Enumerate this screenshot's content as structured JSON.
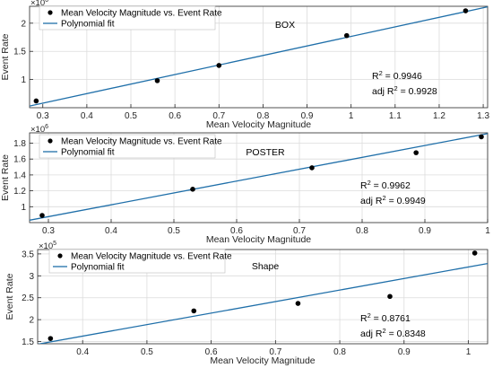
{
  "chart_data": [
    {
      "type": "scatter",
      "title": "BOX",
      "xlabel": "Mean Velocity Magnitude",
      "ylabel": "Event Rate",
      "y_scale_label": "×10",
      "y_scale_exp": "6",
      "xlim": [
        0.27,
        1.31
      ],
      "ylim": [
        0.5,
        2.3
      ],
      "xticks": [
        0.3,
        0.4,
        0.5,
        0.6,
        0.7,
        0.8,
        0.9,
        1.0,
        1.1,
        1.2,
        1.3
      ],
      "xtick_labels": [
        "0.3",
        "0.4",
        "0.5",
        "0.6",
        "0.7",
        "0.8",
        "0.9",
        "1",
        "1.1",
        "1.2",
        "1.3"
      ],
      "yticks": [
        1,
        1.5,
        2
      ],
      "ytick_labels": [
        "1",
        "1.5",
        "2"
      ],
      "grid": true,
      "legend_position": "top-left",
      "series": [
        {
          "name": "Mean Velocity Magnitude vs. Event Rate",
          "kind": "points",
          "x": [
            0.285,
            0.56,
            0.7,
            0.99,
            1.26
          ],
          "y": [
            0.62,
            0.98,
            1.25,
            1.78,
            2.22
          ]
        },
        {
          "name": "Polynomial fit",
          "kind": "line",
          "x": [
            0.27,
            1.31
          ],
          "y": [
            0.53,
            2.29
          ]
        }
      ],
      "annotations": {
        "r2_label": "R",
        "r2_sup": "2",
        "r2_value": " = 0.9946",
        "adj_label": "adj R",
        "adj_sup": "2",
        "adj_value": " = 0.9928"
      }
    },
    {
      "type": "scatter",
      "title": "POSTER",
      "xlabel": "Mean Velocity Magnitude",
      "ylabel": "Event Rate",
      "y_scale_label": "×10",
      "y_scale_exp": "6",
      "xlim": [
        0.27,
        1.0
      ],
      "ylim": [
        0.8,
        1.93
      ],
      "xticks": [
        0.3,
        0.4,
        0.5,
        0.6,
        0.7,
        0.8,
        0.9,
        1.0
      ],
      "xtick_labels": [
        "0.3",
        "0.4",
        "0.5",
        "0.6",
        "0.7",
        "0.8",
        "0.9",
        "1"
      ],
      "yticks": [
        1,
        1.2,
        1.4,
        1.6,
        1.8
      ],
      "ytick_labels": [
        "1",
        "1.2",
        "1.4",
        "1.6",
        "1.8"
      ],
      "grid": true,
      "legend_position": "top-left",
      "series": [
        {
          "name": "Mean Velocity Magnitude vs. Event Rate",
          "kind": "points",
          "x": [
            0.29,
            0.53,
            0.72,
            0.886,
            0.99
          ],
          "y": [
            0.89,
            1.22,
            1.49,
            1.68,
            1.88
          ]
        },
        {
          "name": "Polynomial fit",
          "kind": "line",
          "x": [
            0.27,
            1.0
          ],
          "y": [
            0.83,
            1.92
          ]
        }
      ],
      "annotations": {
        "r2_label": "R",
        "r2_sup": "2",
        "r2_value": " = 0.9962",
        "adj_label": "adj R",
        "adj_sup": "2",
        "adj_value": " = 0.9949"
      }
    },
    {
      "type": "scatter",
      "title": "Shape",
      "xlabel": "Mean Velocity Magnitude",
      "ylabel": "Event Rate",
      "y_scale_label": "×10",
      "y_scale_exp": "5",
      "xlim": [
        0.33,
        1.03
      ],
      "ylim": [
        1.45,
        3.6
      ],
      "xticks": [
        0.4,
        0.5,
        0.6,
        0.7,
        0.8,
        0.9,
        1.0
      ],
      "xtick_labels": [
        "0.4",
        "0.5",
        "0.6",
        "0.7",
        "0.8",
        "0.9",
        "1"
      ],
      "yticks": [
        1.5,
        2,
        2.5,
        3,
        3.5
      ],
      "ytick_labels": [
        "1.5",
        "2",
        "2.5",
        "3",
        "3.5"
      ],
      "grid": true,
      "legend_position": "top-left",
      "series": [
        {
          "name": "Mean Velocity Magnitude vs. Event Rate",
          "kind": "points",
          "x": [
            0.35,
            0.573,
            0.735,
            0.878,
            1.01
          ],
          "y": [
            1.57,
            2.2,
            2.37,
            2.53,
            3.52
          ]
        },
        {
          "name": "Polynomial fit",
          "kind": "line",
          "x": [
            0.33,
            1.03
          ],
          "y": [
            1.44,
            3.28
          ]
        }
      ],
      "annotations": {
        "r2_label": "R",
        "r2_sup": "2",
        "r2_value": " = 0.8761",
        "adj_label": "adj R",
        "adj_sup": "2",
        "adj_value": " = 0.8348"
      }
    }
  ],
  "colors": {
    "fit_line": "#1f6fa9",
    "points": "#000000",
    "grid": "#dcdcdc",
    "axes": "#262626"
  }
}
